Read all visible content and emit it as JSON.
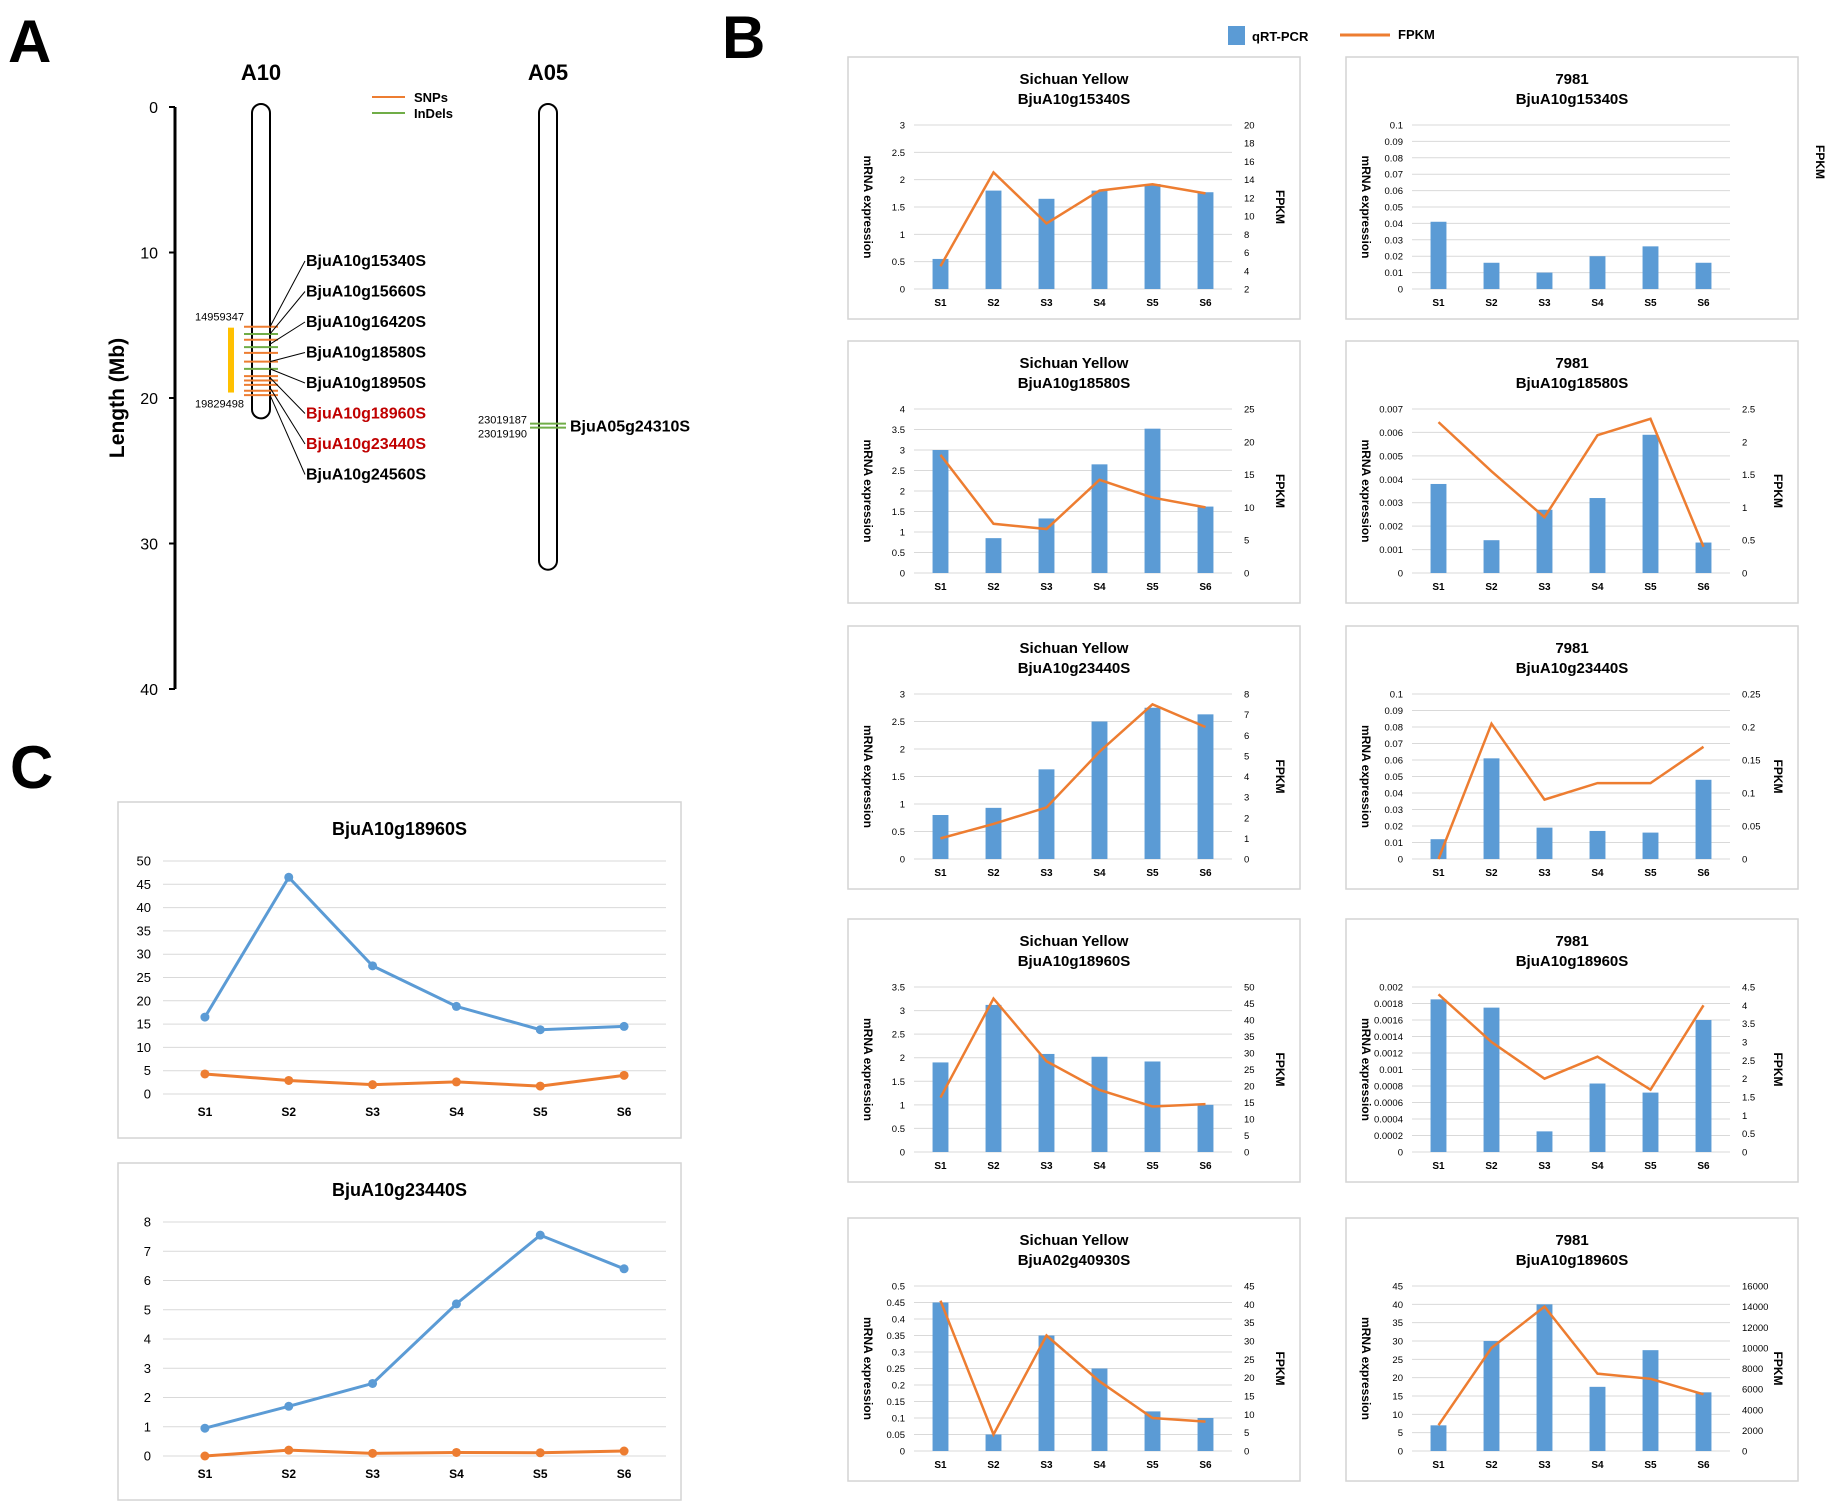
{
  "panel_labels": {
    "a": "A",
    "b": "B",
    "c": "C"
  },
  "panel_a": {
    "chromosomes": [
      {
        "name": "A10",
        "length_mb": 21.4
      },
      {
        "name": "A05",
        "length_mb": 31.8
      }
    ],
    "axis": {
      "label": "Length (Mb)",
      "ticks": [
        0,
        10,
        20,
        30,
        40
      ],
      "max": 40
    },
    "legend": [
      {
        "label": "SNPs",
        "color": "#ed7d31"
      },
      {
        "label": "InDels",
        "color": "#70ad47"
      }
    ],
    "region": {
      "start_label": "14959347",
      "end_label": "19829498",
      "start_mb": 14.96,
      "end_mb": 19.83,
      "color": "#ffc000"
    },
    "markers_mb": [
      {
        "mb": 15.1,
        "kind": "snp"
      },
      {
        "mb": 15.6,
        "kind": "indel"
      },
      {
        "mb": 16.0,
        "kind": "snp"
      },
      {
        "mb": 16.5,
        "kind": "indel"
      },
      {
        "mb": 16.9,
        "kind": "snp"
      },
      {
        "mb": 17.5,
        "kind": "snp"
      },
      {
        "mb": 18.0,
        "kind": "indel"
      },
      {
        "mb": 18.5,
        "kind": "snp"
      },
      {
        "mb": 18.8,
        "kind": "snp"
      },
      {
        "mb": 19.1,
        "kind": "snp"
      },
      {
        "mb": 19.5,
        "kind": "snp"
      },
      {
        "mb": 19.8,
        "kind": "snp"
      }
    ],
    "genes": [
      {
        "label": "BjuA10g15340S",
        "mb": 15.1,
        "highlight": false
      },
      {
        "label": "BjuA10g15660S",
        "mb": 15.6,
        "highlight": false
      },
      {
        "label": "BjuA10g16420S",
        "mb": 16.3,
        "highlight": false
      },
      {
        "label": "BjuA10g18580S",
        "mb": 17.5,
        "highlight": false
      },
      {
        "label": "BjuA10g18950S",
        "mb": 18.0,
        "highlight": false
      },
      {
        "label": "BjuA10g18960S",
        "mb": 18.6,
        "highlight": true
      },
      {
        "label": "BjuA10g23440S",
        "mb": 19.3,
        "highlight": true
      },
      {
        "label": "BjuA10g24560S",
        "mb": 19.8,
        "highlight": false
      }
    ],
    "a05_marker": {
      "pos1": "23019187",
      "pos2": "23019190",
      "gene": "BjuA05g24310S",
      "mb": 21.9
    }
  },
  "legend_b": {
    "bar_label": "qRT-PCR",
    "line_label": "FPKM"
  },
  "colors": {
    "bar": "#5b9bd5",
    "line": "#ed7d31",
    "grid": "#d9d9d9",
    "highlight": "#c00000",
    "axis_text": "#000000"
  },
  "axis_titles": {
    "left": "mRNA expression",
    "right": "FPKM"
  },
  "chart_data": [
    {
      "id": "b1",
      "type": "bar+line",
      "title": [
        "Sichuan Yellow",
        "BjuA10g15340S"
      ],
      "categories": [
        "S1",
        "S2",
        "S3",
        "S4",
        "S5",
        "S6"
      ],
      "bars": [
        0.55,
        1.8,
        1.65,
        1.8,
        1.92,
        1.77
      ],
      "line": [
        4.5,
        14.8,
        9.2,
        12.8,
        13.5,
        12.5
      ],
      "left_ticks": [
        "0",
        "0.5",
        "1",
        "1.5",
        "2",
        "2.5",
        "3"
      ],
      "left_range": [
        0,
        3
      ],
      "right_ticks": [
        "2",
        "4",
        "6",
        "8",
        "10",
        "12",
        "14",
        "16",
        "18",
        "20"
      ],
      "right_range": [
        2,
        20
      ]
    },
    {
      "id": "b2",
      "type": "bar",
      "title": [
        "7981",
        "BjuA10g15340S"
      ],
      "categories": [
        "S1",
        "S2",
        "S3",
        "S4",
        "S5",
        "S6"
      ],
      "bars": [
        0.041,
        0.016,
        0.01,
        0.02,
        0.026,
        0.016
      ],
      "line": null,
      "left_ticks": [
        "0",
        "0.01",
        "0.02",
        "0.03",
        "0.04",
        "0.05",
        "0.06",
        "0.07",
        "0.08",
        "0.09",
        "0.1"
      ],
      "left_range": [
        0,
        0.1
      ],
      "right_ticks": [],
      "right_range": [
        0,
        1
      ]
    },
    {
      "id": "b3",
      "type": "bar+line",
      "title": [
        "Sichuan Yellow",
        "BjuA10g18580S"
      ],
      "categories": [
        "S1",
        "S2",
        "S3",
        "S4",
        "S5",
        "S6"
      ],
      "bars": [
        3.0,
        0.85,
        1.33,
        2.65,
        3.52,
        1.62
      ],
      "line": [
        18.0,
        7.5,
        6.7,
        14.2,
        11.5,
        10.0
      ],
      "left_ticks": [
        "0",
        "0.5",
        "1",
        "1.5",
        "2",
        "2.5",
        "3",
        "3.5",
        "4"
      ],
      "left_range": [
        0,
        4
      ],
      "right_ticks": [
        "0",
        "5",
        "10",
        "15",
        "20",
        "25"
      ],
      "right_range": [
        0,
        25
      ]
    },
    {
      "id": "b4",
      "type": "bar+line",
      "title": [
        "7981",
        "BjuA10g18580S"
      ],
      "categories": [
        "S1",
        "S2",
        "S3",
        "S4",
        "S5",
        "S6"
      ],
      "bars": [
        0.0038,
        0.0014,
        0.0027,
        0.0032,
        0.0059,
        0.0013
      ],
      "line": [
        2.3,
        1.55,
        0.85,
        2.1,
        2.35,
        0.4
      ],
      "left_ticks": [
        "0",
        "0.001",
        "0.002",
        "0.003",
        "0.004",
        "0.005",
        "0.006",
        "0.007"
      ],
      "left_range": [
        0,
        0.007
      ],
      "right_ticks": [
        "0",
        "0.5",
        "1",
        "1.5",
        "2",
        "2.5"
      ],
      "right_range": [
        0,
        2.5
      ]
    },
    {
      "id": "b5",
      "type": "bar+line",
      "title": [
        "Sichuan Yellow",
        "BjuA10g23440S"
      ],
      "categories": [
        "S1",
        "S2",
        "S3",
        "S4",
        "S5",
        "S6"
      ],
      "bars": [
        0.8,
        0.93,
        1.63,
        2.5,
        2.75,
        2.63
      ],
      "line": [
        1.0,
        1.7,
        2.5,
        5.2,
        7.5,
        6.4
      ],
      "left_ticks": [
        "0",
        "0.5",
        "1",
        "1.5",
        "2",
        "2.5",
        "3"
      ],
      "left_range": [
        0,
        3
      ],
      "right_ticks": [
        "0",
        "1",
        "2",
        "3",
        "4",
        "5",
        "6",
        "7",
        "8"
      ],
      "right_range": [
        0,
        8
      ]
    },
    {
      "id": "b6",
      "type": "bar+line",
      "title": [
        "7981",
        "BjuA10g23440S"
      ],
      "categories": [
        "S1",
        "S2",
        "S3",
        "S4",
        "S5",
        "S6"
      ],
      "bars": [
        0.012,
        0.061,
        0.019,
        0.017,
        0.016,
        0.048
      ],
      "line": [
        0.0,
        0.205,
        0.09,
        0.115,
        0.115,
        0.17
      ],
      "left_ticks": [
        "0",
        "0.01",
        "0.02",
        "0.03",
        "0.04",
        "0.05",
        "0.06",
        "0.07",
        "0.08",
        "0.09",
        "0.1"
      ],
      "left_range": [
        0,
        0.1
      ],
      "right_ticks": [
        "0",
        "0.05",
        "0.1",
        "0.15",
        "0.2",
        "0.25"
      ],
      "right_range": [
        0,
        0.25
      ]
    },
    {
      "id": "b7",
      "type": "bar+line",
      "title": [
        "Sichuan Yellow",
        "BjuA10g18960S"
      ],
      "categories": [
        "S1",
        "S2",
        "S3",
        "S4",
        "S5",
        "S6"
      ],
      "bars": [
        1.9,
        3.12,
        2.08,
        2.02,
        1.92,
        1.0
      ],
      "line": [
        16.5,
        46.5,
        27.5,
        18.8,
        13.8,
        14.5
      ],
      "left_ticks": [
        "0",
        "0.5",
        "1",
        "1.5",
        "2",
        "2.5",
        "3",
        "3.5"
      ],
      "left_range": [
        0,
        3.5
      ],
      "right_ticks": [
        "0",
        "5",
        "10",
        "15",
        "20",
        "25",
        "30",
        "35",
        "40",
        "45",
        "50"
      ],
      "right_range": [
        0,
        50
      ]
    },
    {
      "id": "b8",
      "type": "bar+line",
      "title": [
        "7981",
        "BjuA10g18960S"
      ],
      "categories": [
        "S1",
        "S2",
        "S3",
        "S4",
        "S5",
        "S6"
      ],
      "bars": [
        0.00185,
        0.00175,
        0.00025,
        0.00083,
        0.00072,
        0.0016
      ],
      "line": [
        4.3,
        3.0,
        2.0,
        2.6,
        1.7,
        4.0
      ],
      "left_ticks": [
        "0",
        "0.0002",
        "0.0004",
        "0.0006",
        "0.0008",
        "0.001",
        "0.0012",
        "0.0014",
        "0.0016",
        "0.0018",
        "0.002"
      ],
      "left_range": [
        0,
        0.002
      ],
      "right_ticks": [
        "0",
        "0.5",
        "1",
        "1.5",
        "2",
        "2.5",
        "3",
        "3.5",
        "4",
        "4.5"
      ],
      "right_range": [
        0,
        4.5
      ]
    },
    {
      "id": "b9",
      "type": "bar+line",
      "title": [
        "Sichuan Yellow",
        "BjuA02g40930S"
      ],
      "categories": [
        "S1",
        "S2",
        "S3",
        "S4",
        "S5",
        "S6"
      ],
      "bars": [
        0.45,
        0.05,
        0.35,
        0.25,
        0.12,
        0.1
      ],
      "line": [
        41.0,
        4.5,
        31.5,
        19.0,
        9.0,
        8.0
      ],
      "left_ticks": [
        "0",
        "0.05",
        "0.1",
        "0.15",
        "0.2",
        "0.25",
        "0.3",
        "0.35",
        "0.4",
        "0.45",
        "0.5"
      ],
      "left_range": [
        0,
        0.5
      ],
      "right_ticks": [
        "0",
        "5",
        "10",
        "15",
        "20",
        "25",
        "30",
        "35",
        "40",
        "45"
      ],
      "right_range": [
        0,
        45
      ]
    },
    {
      "id": "b10",
      "type": "bar+line",
      "title": [
        "7981",
        "BjuA10g18960S"
      ],
      "categories": [
        "S1",
        "S2",
        "S3",
        "S4",
        "S5",
        "S6"
      ],
      "bars": [
        7.0,
        30.0,
        40.0,
        17.5,
        27.5,
        16.0
      ],
      "line": [
        2500,
        10000,
        14000,
        7500,
        7000,
        5500
      ],
      "left_ticks": [
        "0",
        "5",
        "10",
        "15",
        "20",
        "25",
        "30",
        "35",
        "40",
        "45"
      ],
      "left_range": [
        0,
        45
      ],
      "right_ticks": [
        "0",
        "2000",
        "4000",
        "6000",
        "8000",
        "10000",
        "12000",
        "14000",
        "16000"
      ],
      "right_range": [
        0,
        16000
      ]
    },
    {
      "id": "c1",
      "type": "line",
      "title": [
        "BjuA10g18960S"
      ],
      "categories": [
        "S1",
        "S2",
        "S3",
        "S4",
        "S5",
        "S6"
      ],
      "series": [
        {
          "name": "blue",
          "values": [
            16.5,
            46.5,
            27.5,
            18.8,
            13.8,
            14.5
          ]
        },
        {
          "name": "orange",
          "values": [
            4.3,
            2.9,
            2.0,
            2.6,
            1.7,
            4.0
          ]
        }
      ],
      "ticks": [
        "0",
        "5",
        "10",
        "15",
        "20",
        "25",
        "30",
        "35",
        "40",
        "45",
        "50"
      ],
      "range": [
        0,
        50
      ]
    },
    {
      "id": "c2",
      "type": "line",
      "title": [
        "BjuA10g23440S"
      ],
      "categories": [
        "S1",
        "S2",
        "S3",
        "S4",
        "S5",
        "S6"
      ],
      "series": [
        {
          "name": "blue",
          "values": [
            0.95,
            1.7,
            2.48,
            5.2,
            7.55,
            6.4
          ]
        },
        {
          "name": "orange",
          "values": [
            0.0,
            0.2,
            0.09,
            0.12,
            0.11,
            0.17
          ]
        }
      ],
      "ticks": [
        "0",
        "1",
        "2",
        "3",
        "4",
        "5",
        "6",
        "7",
        "8"
      ],
      "range": [
        0,
        8
      ]
    }
  ]
}
